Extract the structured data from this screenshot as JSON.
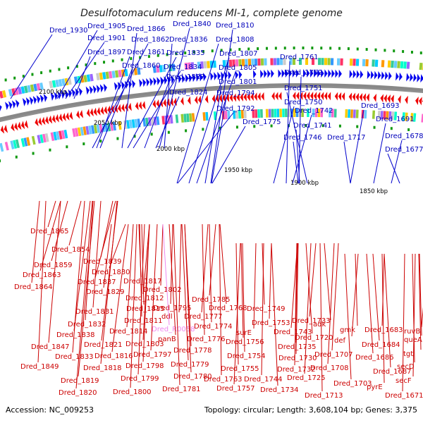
{
  "title": "Desulfotomaculum reducens MI-1, complete genome",
  "footer": {
    "accession": "Accession: NC_009253",
    "summary": "Topology: circular; Length: 3,608,104 bp; Genes: 3,375"
  },
  "colors": {
    "forward": "#0000ee",
    "reverse": "#ee0000",
    "rna": "#ee88ee",
    "backbone": "#888888"
  },
  "scale_ticks": [
    "2100 kbp",
    "2050 kbp",
    "2000 kbp",
    "1950 kbp",
    "1900 kbp",
    "1850 kbp"
  ],
  "forward_labels": [
    "Dred_1930",
    "Dred_1905",
    "Dred_1901",
    "Dred_1897",
    "Dred_1866",
    "Dred_1862",
    "Dred_1861",
    "Dred_1860",
    "Dred_1840",
    "Dred_1836",
    "Dred_1835",
    "Dred_1834",
    "Dred_1827",
    "Dred_1824",
    "Dred_1810",
    "Dred_1808",
    "Dred_1807",
    "Dred_1805",
    "Dred_1801",
    "Dred_1794",
    "Dred_1792",
    "Dred_1775",
    "Dred_1761",
    "Dred_1752",
    "Dred_1751",
    "Dred_1750",
    "Dred_1742",
    "Dred_1741",
    "Dred_1746",
    "Dred_1717",
    "Dred_1693",
    "Dred_1691",
    "Dred_1678",
    "Dred_1677"
  ],
  "reverse_labels": [
    "Dred_1865",
    "Dred_1854",
    "Dred_1859",
    "Dred_1863",
    "Dred_1864",
    "Dred_1839",
    "Dred_1830",
    "Dred_1837",
    "Dred_1829",
    "Dred_1817",
    "Dred_1802",
    "Dred_1812",
    "Dred_1831",
    "Dred_1815",
    "Dred_1795",
    "Dred_1785",
    "Dred_1832",
    "Dred_1811",
    "ddl",
    "Dred_1777",
    "Dred_1768",
    "Dred_1749",
    "Dred_1838",
    "Dred_1814",
    "Dred_R0058",
    "Dred_1774",
    "Dred_1753",
    "Dred_1733",
    "adk",
    "Dred_1847",
    "Dred_1821",
    "Dred_1803",
    "panB",
    "Dred_1776",
    "surE",
    "Dred_1743",
    "Dred_1720",
    "gmk",
    "Dred_1683",
    "ruvB",
    "Dred_1849",
    "Dred_1833",
    "Dred_1816",
    "Dred_1797",
    "Dred_1778",
    "Dred_1756",
    "Dred_1735",
    "def",
    "Dred_1684",
    "queA",
    "Dred_1818",
    "Dred_1798",
    "Dred_1779",
    "Dred_1754",
    "Dred_1730",
    "Dred_1707",
    "Dred_1686",
    "tgt",
    "Dred_1819",
    "Dred_1799",
    "Dred_1780",
    "Dred_1755",
    "Dred_1732",
    "Dred_1708",
    "Dred_1687",
    "secD",
    "Dred_1820",
    "Dred_1800",
    "Dred_1781",
    "Dred_1763",
    "Dred_1744",
    "Dred_1725",
    "Dred_1703",
    "pyrE",
    "secF",
    "Dred_1757",
    "Dred_1734",
    "Dred_1713",
    "Dred_1671"
  ]
}
